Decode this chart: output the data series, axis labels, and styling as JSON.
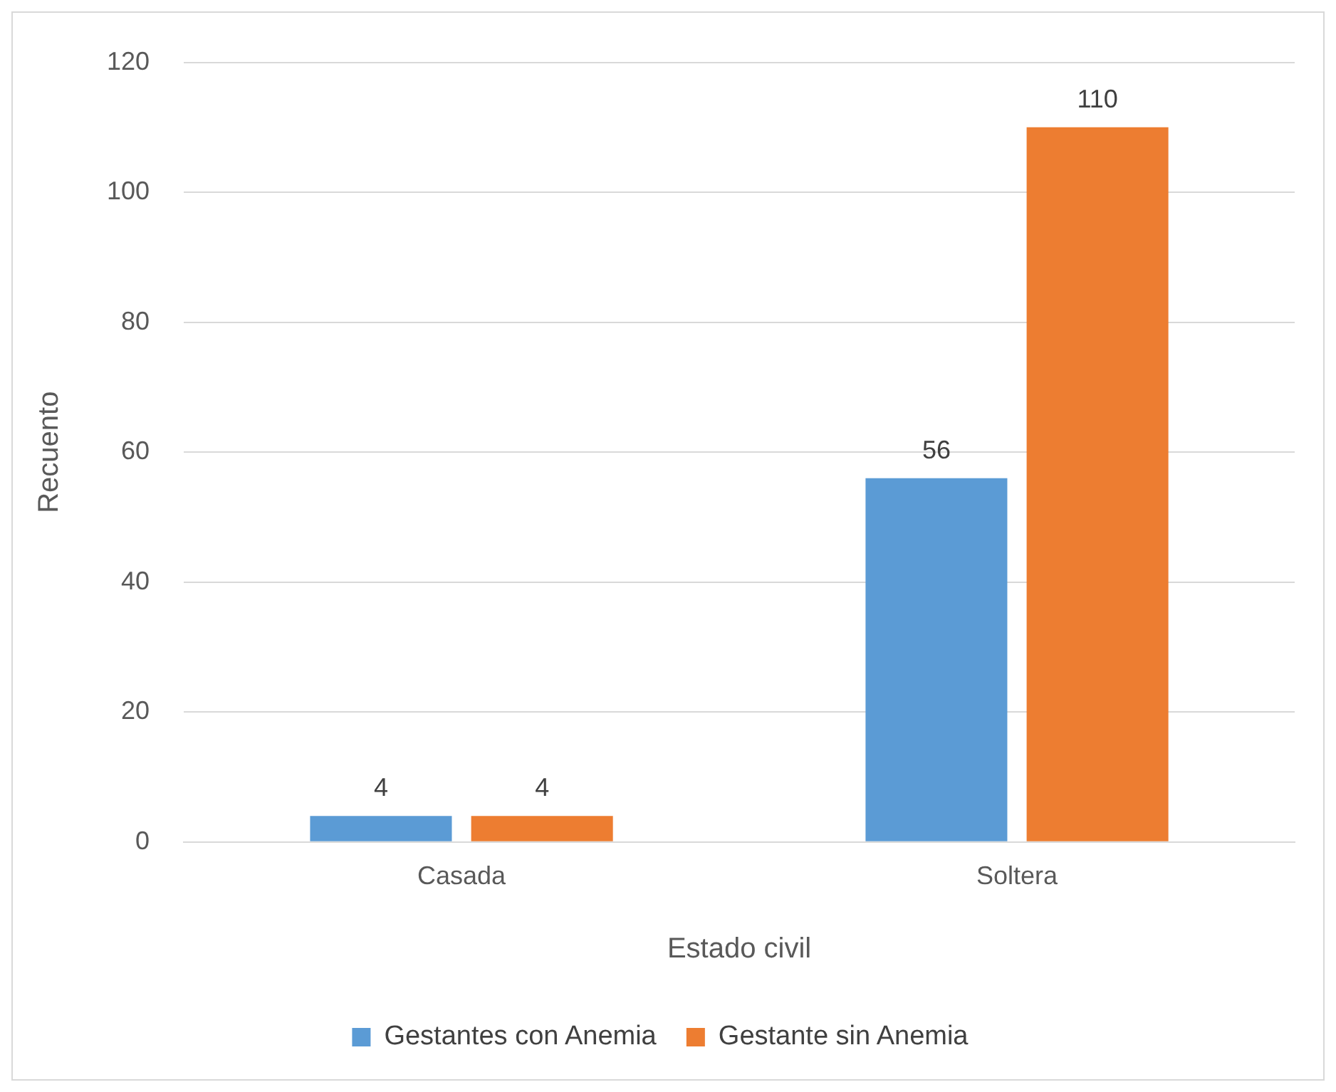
{
  "chart_data": {
    "type": "bar",
    "xlabel": "Estado civil",
    "ylabel": "Recuento",
    "categories": [
      "Casada",
      "Soltera"
    ],
    "series": [
      {
        "name": "Gestantes con Anemia",
        "color": "#5b9bd5",
        "values": [
          4,
          56
        ]
      },
      {
        "name": "Gestante sin Anemia",
        "color": "#ed7d31",
        "values": [
          4,
          110
        ]
      }
    ],
    "ylim": [
      0,
      120
    ],
    "yticks": [
      0,
      20,
      40,
      60,
      80,
      100,
      120
    ],
    "grid": "y",
    "legend": "bottom",
    "data_labels": true
  }
}
